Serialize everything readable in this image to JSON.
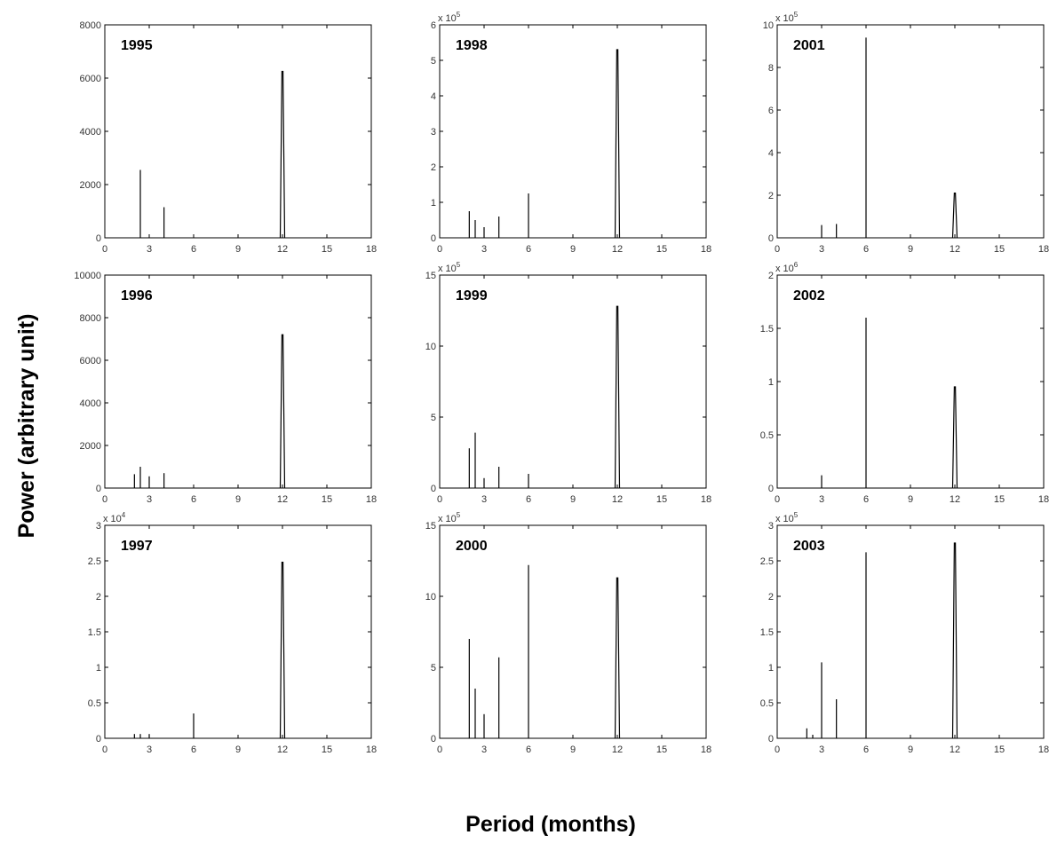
{
  "figure": {
    "ylabel": "Power (arbitrary unit)",
    "xlabel": "Period (months)"
  },
  "chart_data": [
    {
      "type": "line",
      "title": "1995",
      "xlim": [
        0,
        18
      ],
      "ylim": [
        0,
        8000
      ],
      "xticks": [
        0,
        3,
        6,
        9,
        12,
        15,
        18
      ],
      "xtick_labels": [
        "0",
        "3",
        "6",
        "9",
        "12",
        "15",
        "18"
      ],
      "yticks": [
        0,
        2000,
        4000,
        6000,
        8000
      ],
      "ytick_labels": [
        "0",
        "2000",
        "4000",
        "6000",
        "8000"
      ],
      "multiplier": "",
      "peaks": [
        {
          "x": 2.4,
          "y": 2550
        },
        {
          "x": 4,
          "y": 1150
        },
        {
          "x": 12,
          "y": 6250
        }
      ]
    },
    {
      "type": "line",
      "title": "1998",
      "xlim": [
        0,
        18
      ],
      "ylim": [
        0,
        6
      ],
      "xticks": [
        0,
        3,
        6,
        9,
        12,
        15,
        18
      ],
      "xtick_labels": [
        "0",
        "3",
        "6",
        "9",
        "12",
        "15",
        "18"
      ],
      "yticks": [
        0,
        1,
        2,
        3,
        4,
        5,
        6
      ],
      "ytick_labels": [
        "0",
        "1",
        "2",
        "3",
        "4",
        "5",
        "6"
      ],
      "multiplier": "x 10^5",
      "peaks": [
        {
          "x": 2,
          "y": 0.75
        },
        {
          "x": 2.4,
          "y": 0.5
        },
        {
          "x": 3,
          "y": 0.3
        },
        {
          "x": 4,
          "y": 0.6
        },
        {
          "x": 6,
          "y": 1.25
        },
        {
          "x": 12,
          "y": 5.3
        }
      ]
    },
    {
      "type": "line",
      "title": "2001",
      "xlim": [
        0,
        18
      ],
      "ylim": [
        0,
        10
      ],
      "xticks": [
        0,
        3,
        6,
        9,
        12,
        15,
        18
      ],
      "xtick_labels": [
        "0",
        "3",
        "6",
        "9",
        "12",
        "15",
        "18"
      ],
      "yticks": [
        0,
        2,
        4,
        6,
        8,
        10
      ],
      "ytick_labels": [
        "0",
        "2",
        "4",
        "6",
        "8",
        "10"
      ],
      "multiplier": "x 10^5",
      "peaks": [
        {
          "x": 3,
          "y": 0.6
        },
        {
          "x": 4,
          "y": 0.65
        },
        {
          "x": 6,
          "y": 9.4
        },
        {
          "x": 12,
          "y": 2.1
        }
      ]
    },
    {
      "type": "line",
      "title": "1996",
      "xlim": [
        0,
        18
      ],
      "ylim": [
        0,
        10000
      ],
      "xticks": [
        0,
        3,
        6,
        9,
        12,
        15,
        18
      ],
      "xtick_labels": [
        "0",
        "3",
        "6",
        "9",
        "12",
        "15",
        "18"
      ],
      "yticks": [
        0,
        2000,
        4000,
        6000,
        8000,
        10000
      ],
      "ytick_labels": [
        "0",
        "2000",
        "4000",
        "6000",
        "8000",
        "10000"
      ],
      "multiplier": "",
      "peaks": [
        {
          "x": 2,
          "y": 650
        },
        {
          "x": 2.4,
          "y": 1000
        },
        {
          "x": 3,
          "y": 550
        },
        {
          "x": 4,
          "y": 700
        },
        {
          "x": 12,
          "y": 7200
        }
      ]
    },
    {
      "type": "line",
      "title": "1999",
      "xlim": [
        0,
        18
      ],
      "ylim": [
        0,
        15
      ],
      "xticks": [
        0,
        3,
        6,
        9,
        12,
        15,
        18
      ],
      "xtick_labels": [
        "0",
        "3",
        "6",
        "9",
        "12",
        "15",
        "18"
      ],
      "yticks": [
        0,
        5,
        10,
        15
      ],
      "ytick_labels": [
        "0",
        "5",
        "10",
        "15"
      ],
      "multiplier": "x 10^5",
      "peaks": [
        {
          "x": 2,
          "y": 2.8
        },
        {
          "x": 2.4,
          "y": 3.9
        },
        {
          "x": 3,
          "y": 0.7
        },
        {
          "x": 4,
          "y": 1.5
        },
        {
          "x": 6,
          "y": 1.0
        },
        {
          "x": 12,
          "y": 12.8
        }
      ]
    },
    {
      "type": "line",
      "title": "2002",
      "xlim": [
        0,
        18
      ],
      "ylim": [
        0,
        2
      ],
      "xticks": [
        0,
        3,
        6,
        9,
        12,
        15,
        18
      ],
      "xtick_labels": [
        "0",
        "3",
        "6",
        "9",
        "12",
        "15",
        "18"
      ],
      "yticks": [
        0,
        0.5,
        1,
        1.5,
        2
      ],
      "ytick_labels": [
        "0",
        "0.5",
        "1",
        "1.5",
        "2"
      ],
      "multiplier": "x 10^6",
      "peaks": [
        {
          "x": 3,
          "y": 0.12
        },
        {
          "x": 6,
          "y": 1.6
        },
        {
          "x": 12,
          "y": 0.95
        }
      ]
    },
    {
      "type": "line",
      "title": "1997",
      "xlim": [
        0,
        18
      ],
      "ylim": [
        0,
        3
      ],
      "xticks": [
        0,
        3,
        6,
        9,
        12,
        15,
        18
      ],
      "xtick_labels": [
        "0",
        "3",
        "6",
        "9",
        "12",
        "15",
        "18"
      ],
      "yticks": [
        0,
        0.5,
        1,
        1.5,
        2,
        2.5,
        3
      ],
      "ytick_labels": [
        "0",
        "0.5",
        "1",
        "1.5",
        "2",
        "2.5",
        "3"
      ],
      "multiplier": "x 10^4",
      "peaks": [
        {
          "x": 2,
          "y": 0.06
        },
        {
          "x": 2.4,
          "y": 0.06
        },
        {
          "x": 3,
          "y": 0.06
        },
        {
          "x": 6,
          "y": 0.35
        },
        {
          "x": 12,
          "y": 2.48
        }
      ]
    },
    {
      "type": "line",
      "title": "2000",
      "xlim": [
        0,
        18
      ],
      "ylim": [
        0,
        15
      ],
      "xticks": [
        0,
        3,
        6,
        9,
        12,
        15,
        18
      ],
      "xtick_labels": [
        "0",
        "3",
        "6",
        "9",
        "12",
        "15",
        "18"
      ],
      "yticks": [
        0,
        5,
        10,
        15
      ],
      "ytick_labels": [
        "0",
        "5",
        "10",
        "15"
      ],
      "multiplier": "x 10^5",
      "peaks": [
        {
          "x": 2,
          "y": 7.0
        },
        {
          "x": 2.4,
          "y": 3.5
        },
        {
          "x": 3,
          "y": 1.7
        },
        {
          "x": 4,
          "y": 5.7
        },
        {
          "x": 6,
          "y": 12.2
        },
        {
          "x": 12,
          "y": 11.3
        }
      ]
    },
    {
      "type": "line",
      "title": "2003",
      "xlim": [
        0,
        18
      ],
      "ylim": [
        0,
        3
      ],
      "xticks": [
        0,
        3,
        6,
        9,
        12,
        15,
        18
      ],
      "xtick_labels": [
        "0",
        "3",
        "6",
        "9",
        "12",
        "15",
        "18"
      ],
      "yticks": [
        0,
        0.5,
        1,
        1.5,
        2,
        2.5,
        3
      ],
      "ytick_labels": [
        "0",
        "0.5",
        "1",
        "1.5",
        "2",
        "2.5",
        "3"
      ],
      "multiplier": "x 10^5",
      "peaks": [
        {
          "x": 2,
          "y": 0.14
        },
        {
          "x": 2.4,
          "y": 0.05
        },
        {
          "x": 3,
          "y": 1.07
        },
        {
          "x": 4,
          "y": 0.55
        },
        {
          "x": 6,
          "y": 2.62
        },
        {
          "x": 12,
          "y": 2.75
        }
      ]
    }
  ]
}
